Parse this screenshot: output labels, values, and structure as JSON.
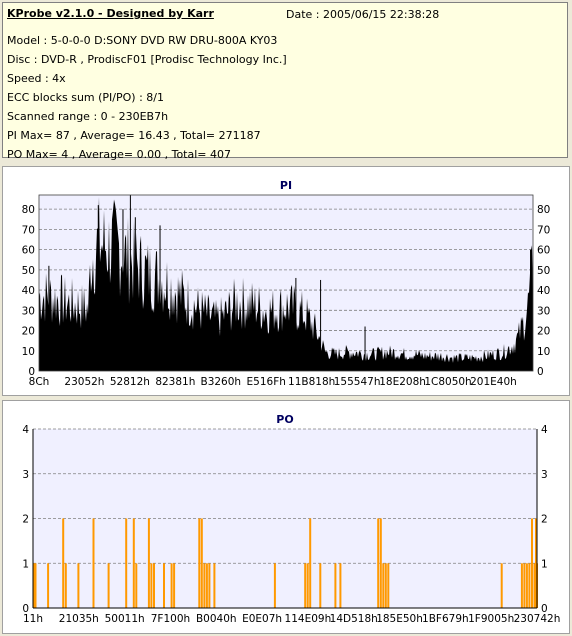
{
  "info": {
    "title": "KProbe v2.1.0 - Designed by Karr",
    "date": "Date : 2005/06/15 22:38:28",
    "lines": [
      "Model : 5-0-0-0 D:SONY    DVD RW DRU-800A  KY03",
      "Disc : DVD-R , ProdiscF01 [Prodisc Technology Inc.]",
      "Speed : 4x",
      "ECC blocks sum (PI/PO) : 8/1",
      "Scanned range : 0 - 230EB7h",
      "PI Max= 87 , Average= 16.43 , Total= 271187",
      "PO Max= 4 , Average= 0.00 , Total= 407"
    ]
  },
  "chart_data": [
    {
      "type": "area",
      "title": "PI",
      "ylim": [
        0,
        87
      ],
      "yticks": [
        0,
        10,
        20,
        30,
        40,
        50,
        60,
        70,
        80
      ],
      "xticks": [
        "8Ch",
        "23052h",
        "52812h",
        "82381h",
        "B3260h",
        "E516Fh",
        "11B818h",
        "155547h",
        "18E208h",
        "1C8050h",
        "201E40h"
      ],
      "grid": true,
      "color": "#000000",
      "x": [
        0,
        0.02,
        0.04,
        0.06,
        0.08,
        0.1,
        0.105,
        0.12,
        0.14,
        0.16,
        0.18,
        0.2,
        0.22,
        0.24,
        0.26,
        0.28,
        0.3,
        0.32,
        0.34,
        0.36,
        0.38,
        0.4,
        0.42,
        0.44,
        0.46,
        0.48,
        0.5,
        0.52,
        0.54,
        0.56,
        0.58,
        0.6,
        0.62,
        0.64,
        0.66,
        0.68,
        0.7,
        0.72,
        0.74,
        0.76,
        0.78,
        0.8,
        0.82,
        0.84,
        0.86,
        0.88,
        0.9,
        0.92,
        0.94,
        0.96,
        0.97,
        0.98,
        0.99,
        1.0
      ],
      "values": [
        40,
        40,
        38,
        36,
        35,
        33,
        60,
        68,
        67,
        66,
        60,
        56,
        52,
        50,
        47,
        42,
        38,
        34,
        30,
        27,
        31,
        37,
        36,
        35,
        32,
        33,
        35,
        33,
        30,
        22,
        10,
        9,
        10,
        10,
        9,
        9,
        10,
        10,
        9,
        9,
        8,
        8,
        8,
        7,
        7,
        7,
        8,
        9,
        10,
        14,
        18,
        25,
        35,
        55
      ],
      "peaks": [
        [
          0.185,
          87
        ],
        [
          0.17,
          80
        ],
        [
          0.12,
          82
        ],
        [
          0.195,
          76
        ],
        [
          0.245,
          72
        ],
        [
          0.52,
          46
        ],
        [
          0.57,
          45
        ],
        [
          0.02,
          52
        ],
        [
          0.66,
          22
        ],
        [
          0.995,
          60
        ]
      ]
    },
    {
      "type": "bar",
      "title": "PO",
      "ylim": [
        0,
        4
      ],
      "yticks": [
        0,
        1,
        2,
        3,
        4
      ],
      "xticks": [
        "11h",
        "21035h",
        "50011h",
        "7F100h",
        "B0040h",
        "E0E07h",
        "114E09h",
        "14D518h",
        "185E50h",
        "1BF679h",
        "1F9005h",
        "230742h"
      ],
      "grid": true,
      "color": "#ff9900",
      "x": [
        0.002,
        0.005,
        0.03,
        0.06,
        0.065,
        0.09,
        0.12,
        0.15,
        0.185,
        0.2,
        0.205,
        0.23,
        0.235,
        0.24,
        0.26,
        0.275,
        0.28,
        0.33,
        0.335,
        0.34,
        0.345,
        0.35,
        0.36,
        0.48,
        0.54,
        0.545,
        0.55,
        0.57,
        0.6,
        0.61,
        0.685,
        0.69,
        0.695,
        0.7,
        0.705,
        0.93,
        0.97,
        0.975,
        0.98,
        0.985,
        0.99,
        0.995,
        0.998,
        1.0
      ],
      "values": [
        1,
        1,
        1,
        2,
        1,
        1,
        2,
        1,
        2,
        2,
        1,
        2,
        1,
        1,
        1,
        1,
        1,
        2,
        2,
        1,
        1,
        1,
        1,
        1,
        1,
        1,
        2,
        1,
        1,
        1,
        2,
        2,
        1,
        1,
        1,
        1,
        1,
        1,
        1,
        1,
        2,
        1,
        2,
        1
      ]
    }
  ]
}
